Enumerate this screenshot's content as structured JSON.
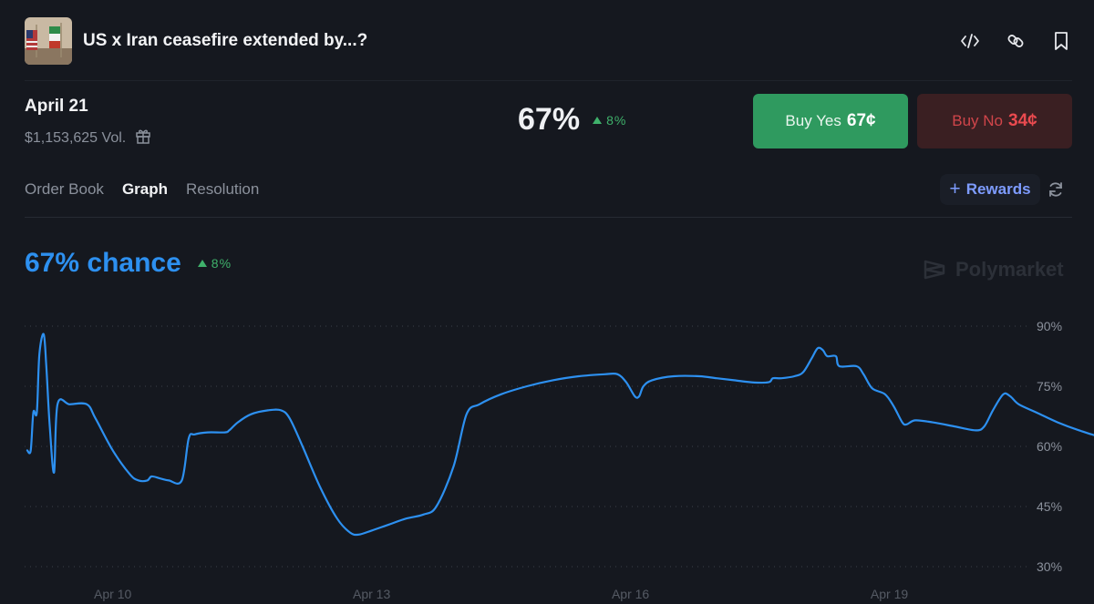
{
  "header": {
    "title": "US x Iran ceasefire extended by...?",
    "icons": [
      "embed-code-icon",
      "link-icon",
      "bookmark-icon"
    ]
  },
  "market": {
    "date": "April 21",
    "volume": "$1,153,625 Vol.",
    "percent": "67%",
    "change": "8%",
    "buy_yes_label": "Buy Yes",
    "buy_yes_price": "67¢",
    "buy_no_label": "Buy No",
    "buy_no_price": "34¢"
  },
  "tabs": [
    {
      "label": "Order Book",
      "active": false
    },
    {
      "label": "Graph",
      "active": true
    },
    {
      "label": "Resolution",
      "active": false
    }
  ],
  "rewards_label": "Rewards",
  "chance": {
    "text": "67% chance",
    "change": "8%"
  },
  "brand": "Polymarket",
  "colors": {
    "line": "#2d90f0",
    "up": "#3fb16b",
    "yes": "#2f9a5f",
    "no": "#ea4a4f",
    "accent": "#7e9cff"
  },
  "chart_data": {
    "type": "line",
    "ylim": [
      30,
      90
    ],
    "y_ticks": [
      90,
      75,
      60,
      45,
      30
    ],
    "y_tick_labels": [
      "90%",
      "75%",
      "60%",
      "45%",
      "30%"
    ],
    "x_ticks": [
      {
        "x": 10,
        "label": "Apr 10"
      },
      {
        "x": 13,
        "label": "Apr 13"
      },
      {
        "x": 16,
        "label": "Apr 16"
      },
      {
        "x": 19,
        "label": "Apr 19"
      }
    ],
    "xlim": [
      9.0,
      20.6
    ],
    "grid": true,
    "series": [
      {
        "points": [
          [
            9.01,
            59
          ],
          [
            9.05,
            59
          ],
          [
            9.08,
            68.5
          ],
          [
            9.12,
            68.5
          ],
          [
            9.15,
            83
          ],
          [
            9.2,
            88
          ],
          [
            9.23,
            80
          ],
          [
            9.27,
            65
          ],
          [
            9.32,
            53.5
          ],
          [
            9.36,
            70.5
          ],
          [
            9.5,
            70.5
          ],
          [
            9.7,
            70.5
          ],
          [
            9.8,
            67
          ],
          [
            10.0,
            59
          ],
          [
            10.2,
            53
          ],
          [
            10.3,
            51.5
          ],
          [
            10.4,
            51.5
          ],
          [
            10.45,
            52.5
          ],
          [
            10.55,
            52
          ],
          [
            10.65,
            51.5
          ],
          [
            10.8,
            51.5
          ],
          [
            10.88,
            62
          ],
          [
            10.95,
            63
          ],
          [
            11.1,
            63.5
          ],
          [
            11.3,
            63.5
          ],
          [
            11.35,
            64
          ],
          [
            11.45,
            66
          ],
          [
            11.6,
            68
          ],
          [
            11.8,
            69
          ],
          [
            11.95,
            69
          ],
          [
            12.05,
            67
          ],
          [
            12.2,
            60
          ],
          [
            12.4,
            50
          ],
          [
            12.6,
            42
          ],
          [
            12.75,
            38.5
          ],
          [
            12.85,
            38
          ],
          [
            13.0,
            39
          ],
          [
            13.2,
            40.5
          ],
          [
            13.4,
            42
          ],
          [
            13.6,
            43
          ],
          [
            13.75,
            45
          ],
          [
            13.95,
            55
          ],
          [
            14.1,
            68
          ],
          [
            14.25,
            70.5
          ],
          [
            14.5,
            73
          ],
          [
            14.8,
            75
          ],
          [
            15.1,
            76.5
          ],
          [
            15.4,
            77.5
          ],
          [
            15.7,
            78
          ],
          [
            15.85,
            78
          ],
          [
            15.95,
            76
          ],
          [
            16.05,
            72.5
          ],
          [
            16.1,
            72.5
          ],
          [
            16.15,
            75
          ],
          [
            16.25,
            76.5
          ],
          [
            16.5,
            77.5
          ],
          [
            16.8,
            77.5
          ],
          [
            17.0,
            77
          ],
          [
            17.2,
            76.5
          ],
          [
            17.4,
            76
          ],
          [
            17.6,
            76
          ],
          [
            17.65,
            77
          ],
          [
            17.75,
            77
          ],
          [
            17.9,
            77.5
          ],
          [
            18.0,
            78.5
          ],
          [
            18.1,
            82
          ],
          [
            18.17,
            84.5
          ],
          [
            18.23,
            84
          ],
          [
            18.28,
            82.5
          ],
          [
            18.38,
            82.5
          ],
          [
            18.42,
            80
          ],
          [
            18.62,
            80
          ],
          [
            18.7,
            78
          ],
          [
            18.8,
            74.5
          ],
          [
            18.95,
            73
          ],
          [
            19.05,
            70
          ],
          [
            19.15,
            66
          ],
          [
            19.2,
            65.5
          ],
          [
            19.3,
            66.5
          ],
          [
            19.5,
            66
          ],
          [
            19.75,
            65
          ],
          [
            20.0,
            64
          ],
          [
            20.1,
            65
          ],
          [
            20.2,
            69
          ],
          [
            20.32,
            73
          ],
          [
            20.4,
            72.5
          ],
          [
            20.5,
            70.5
          ],
          [
            20.7,
            68.5
          ],
          [
            20.95,
            66
          ],
          [
            21.2,
            64
          ],
          [
            21.45,
            62.5
          ],
          [
            21.55,
            64
          ],
          [
            21.6,
            65.5
          ],
          [
            21.62,
            67
          ]
        ]
      }
    ]
  }
}
